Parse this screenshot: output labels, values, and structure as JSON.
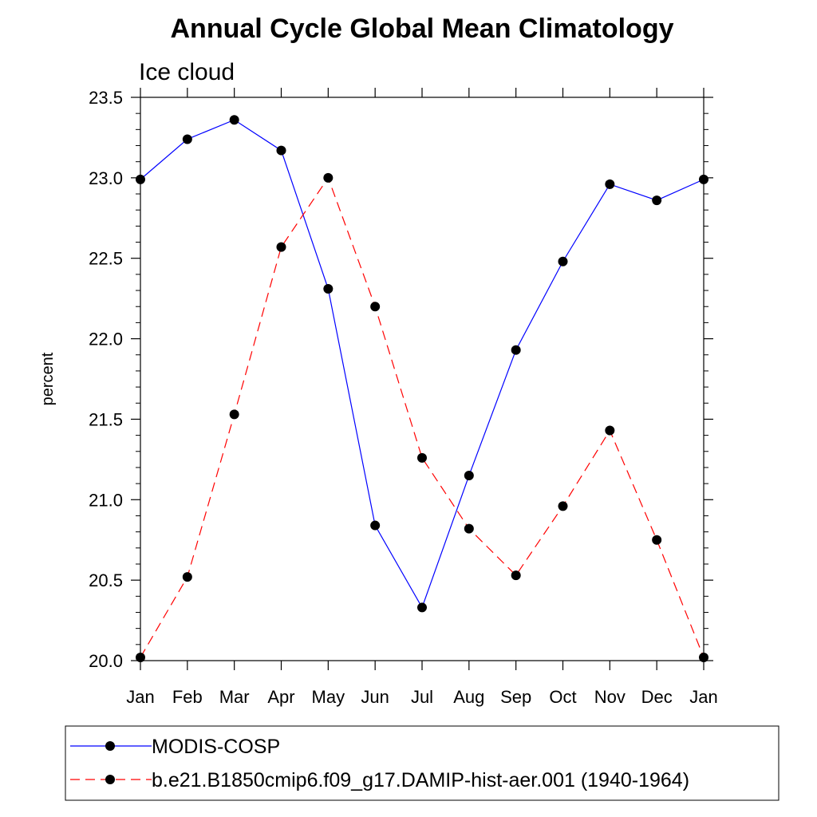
{
  "chart_data": {
    "type": "line",
    "title": "Annual Cycle Global Mean Climatology",
    "subtitle": "Ice cloud",
    "xlabel": "",
    "ylabel": "percent",
    "categories": [
      "Jan",
      "Feb",
      "Mar",
      "Apr",
      "May",
      "Jun",
      "Jul",
      "Aug",
      "Sep",
      "Oct",
      "Nov",
      "Dec",
      "Jan"
    ],
    "ylim": [
      20.0,
      23.5
    ],
    "yticks": [
      "20.0",
      "20.5",
      "21.0",
      "21.5",
      "22.0",
      "22.5",
      "23.0",
      "23.5"
    ],
    "grid": false,
    "legend_position": "bottom",
    "series": [
      {
        "name": "MODIS-COSP",
        "color": "#0000ff",
        "line_style": "solid",
        "marker": "filled-circle",
        "values": [
          22.99,
          23.24,
          23.36,
          23.17,
          22.31,
          20.84,
          20.33,
          21.15,
          21.93,
          22.48,
          22.96,
          22.86,
          22.99
        ]
      },
      {
        "name": "b.e21.B1850cmip6.f09_g17.DAMIP-hist-aer.001 (1940-1964)",
        "color": "#ff0000",
        "line_style": "dashed",
        "marker": "filled-circle",
        "values": [
          20.02,
          20.52,
          21.53,
          22.57,
          23.0,
          22.2,
          21.26,
          20.82,
          20.53,
          20.96,
          21.43,
          20.75,
          20.02
        ]
      }
    ]
  }
}
